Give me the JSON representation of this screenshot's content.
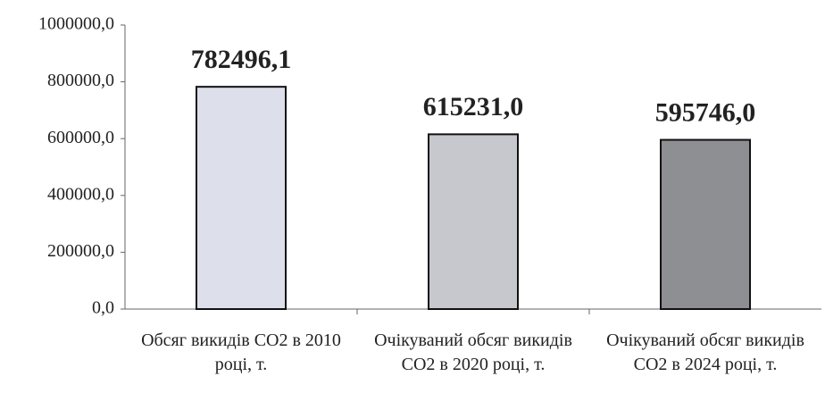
{
  "chart_data": {
    "type": "bar",
    "categories": [
      "Обсяг викидів CO2 в 2010 році, т.",
      "Очікуваний обсяг викидів CO2 в 2020 році, т.",
      "Очікуваний обсяг викидів CO2 в 2024 році, т."
    ],
    "values": [
      782496.1,
      615231.0,
      595746.0
    ],
    "value_labels": [
      "782496,1",
      "615231,0",
      "595746,0"
    ],
    "colors": [
      "#dde0ea",
      "#c6c8cd",
      "#8e8f93"
    ],
    "ylim": [
      0,
      1000000
    ],
    "yticks": [
      {
        "value": 0,
        "label": "0,0"
      },
      {
        "value": 200000,
        "label": "200000,0"
      },
      {
        "value": 400000,
        "label": "400000,0"
      },
      {
        "value": 600000,
        "label": "600000,0"
      },
      {
        "value": 800000,
        "label": "800000,0"
      },
      {
        "value": 1000000,
        "label": "1000000,0"
      }
    ]
  }
}
